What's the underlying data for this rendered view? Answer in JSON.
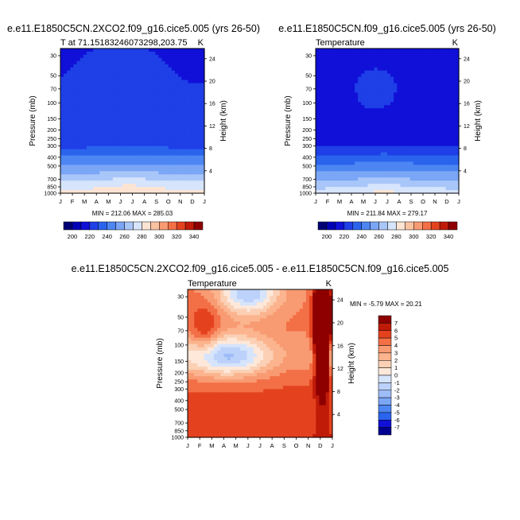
{
  "chart_data": [
    {
      "type": "heatmap",
      "title": "e.e11.E1850C5CN.2XCO2.f09_g16.cice5.005 (yrs 26-50)",
      "left_string": "T at 71.15183246073298,203.75",
      "right_string": "K",
      "xlabel": "",
      "ylabel": "Pressure (mb)",
      "right_axis_label": "Height (km)",
      "x_ticks": [
        "J",
        "F",
        "M",
        "A",
        "M",
        "J",
        "J",
        "A",
        "S",
        "O",
        "N",
        "D",
        "J"
      ],
      "y_ticks": [
        "30",
        "50",
        "70",
        "100",
        "150",
        "200",
        "250",
        "300",
        "400",
        "500",
        "700",
        "850",
        "1000"
      ],
      "right_ticks": [
        "24",
        "20",
        "16",
        "12",
        "8",
        "4"
      ],
      "ylim": [
        1000,
        25
      ],
      "min": 212.06,
      "max": 285.03,
      "minmax_label": "MIN = 212.06 MAX = 285.03",
      "colorbar": {
        "orientation": "horizontal",
        "labels": [
          "200",
          "220",
          "240",
          "260",
          "280",
          "300",
          "320",
          "340"
        ],
        "levels": [
          200,
          210,
          220,
          230,
          240,
          250,
          260,
          270,
          280,
          290,
          300,
          310,
          320,
          330,
          340
        ],
        "colors": [
          "#000074",
          "#0000b5",
          "#1010d8",
          "#1f3fe7",
          "#2a64ed",
          "#4d86f2",
          "#7ba6f6",
          "#a9c6f9",
          "#d6e4fc",
          "#fde4d2",
          "#fbc2a2",
          "#f89a72",
          "#f36f46",
          "#e4421f",
          "#c01b08",
          "#8e0000"
        ]
      }
    },
    {
      "type": "heatmap",
      "title": "e.e11.E1850C5CN.f09_g16.cice5.005 (yrs 26-50)",
      "left_string": "Temperature",
      "right_string": "K",
      "xlabel": "",
      "ylabel": "Pressure (mb)",
      "right_axis_label": "Height (km)",
      "x_ticks": [
        "J",
        "F",
        "M",
        "A",
        "M",
        "J",
        "J",
        "A",
        "S",
        "O",
        "N",
        "D",
        "J"
      ],
      "y_ticks": [
        "30",
        "50",
        "70",
        "100",
        "150",
        "200",
        "250",
        "300",
        "400",
        "500",
        "700",
        "850",
        "1000"
      ],
      "right_ticks": [
        "24",
        "20",
        "16",
        "12",
        "8",
        "4"
      ],
      "ylim": [
        1000,
        25
      ],
      "min": 211.84,
      "max": 279.17,
      "minmax_label": "MIN = 211.84 MAX = 279.17",
      "colorbar": {
        "orientation": "horizontal",
        "labels": [
          "200",
          "220",
          "240",
          "260",
          "280",
          "300",
          "320",
          "340"
        ],
        "levels": [
          200,
          210,
          220,
          230,
          240,
          250,
          260,
          270,
          280,
          290,
          300,
          310,
          320,
          330,
          340
        ],
        "colors": [
          "#000074",
          "#0000b5",
          "#1010d8",
          "#1f3fe7",
          "#2a64ed",
          "#4d86f2",
          "#7ba6f6",
          "#a9c6f9",
          "#d6e4fc",
          "#fde4d2",
          "#fbc2a2",
          "#f89a72",
          "#f36f46",
          "#e4421f",
          "#c01b08",
          "#8e0000"
        ]
      }
    },
    {
      "type": "heatmap",
      "title": "e.e11.E1850C5CN.2XCO2.f09_g16.cice5.005 - e.e11.E1850C5CN.f09_g16.cice5.005",
      "left_string": "Temperature",
      "right_string": "K",
      "xlabel": "",
      "ylabel": "Pressure (mb)",
      "right_axis_label": "Height (km)",
      "x_ticks": [
        "J",
        "F",
        "M",
        "A",
        "M",
        "J",
        "J",
        "A",
        "S",
        "O",
        "N",
        "D",
        "J"
      ],
      "y_ticks": [
        "30",
        "50",
        "70",
        "100",
        "150",
        "200",
        "250",
        "300",
        "400",
        "500",
        "700",
        "850",
        "1000"
      ],
      "right_ticks": [
        "24",
        "20",
        "16",
        "12",
        "8",
        "4"
      ],
      "ylim": [
        1000,
        25
      ],
      "min": -5.79,
      "max": 20.21,
      "minmax_label": "MIN = -5.79 MAX =  20.21",
      "colorbar": {
        "orientation": "vertical",
        "labels": [
          "7",
          "6",
          "5",
          "4",
          "3",
          "2",
          "1",
          "0",
          "-1",
          "-2",
          "-3",
          "-4",
          "-5",
          "-6",
          "-7"
        ],
        "levels": [
          7,
          6,
          5,
          4,
          3,
          2,
          1,
          0,
          -1,
          -2,
          -3,
          -4,
          -5,
          -6,
          -7
        ],
        "colors": [
          "#8e0000",
          "#c01b08",
          "#e4421f",
          "#f36f46",
          "#f89a72",
          "#fbb48e",
          "#fbd0b5",
          "#fde8da",
          "#d6e4fc",
          "#bcd2fa",
          "#9ebcf7",
          "#7ba6f6",
          "#4d86f2",
          "#2a64ed",
          "#1010d8",
          "#000090"
        ]
      }
    }
  ]
}
